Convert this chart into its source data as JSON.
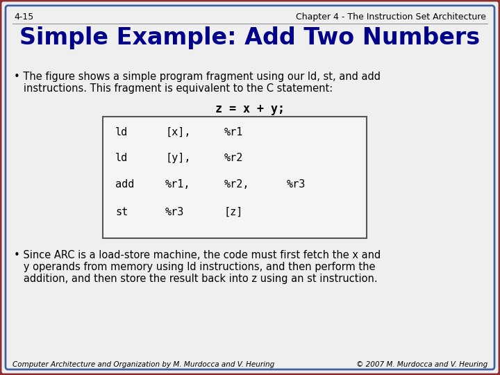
{
  "slide_num": "4-15",
  "chapter_header": "Chapter 4 - The Instruction Set Architecture",
  "title": "Simple Example: Add Two Numbers",
  "bullet1_line1": "• The figure shows a simple program fragment using our ld, st, and add",
  "bullet1_line2": "   instructions. This fragment is equivalent to the C statement:",
  "equation": "z = x + y;",
  "code_rows": [
    [
      "ld",
      "[x],",
      "%r1",
      ""
    ],
    [
      "ld",
      "[y],",
      "%r2",
      ""
    ],
    [
      "add",
      "%r1,",
      "%r2,",
      "%r3"
    ],
    [
      "st",
      "%r3",
      "[z]",
      ""
    ]
  ],
  "bullet2_line1": "• Since ARC is a load-store machine, the code must first fetch the x and",
  "bullet2_line2": "   y operands from memory using ld instructions, and then perform the",
  "bullet2_line3": "   addition, and then store the result back into z using an st instruction.",
  "footer_left": "Computer Architecture and Organization by M. Murdocca and V. Heuring",
  "footer_right": "© 2007 M. Murdocca and V. Heuring",
  "bg_color": "#efefef",
  "border_outer_color": "#8B3030",
  "border_inner_color": "#4060A0",
  "title_color": "#00008B",
  "text_color": "#000000",
  "code_bg": "#f5f5f5",
  "code_border": "#555555"
}
